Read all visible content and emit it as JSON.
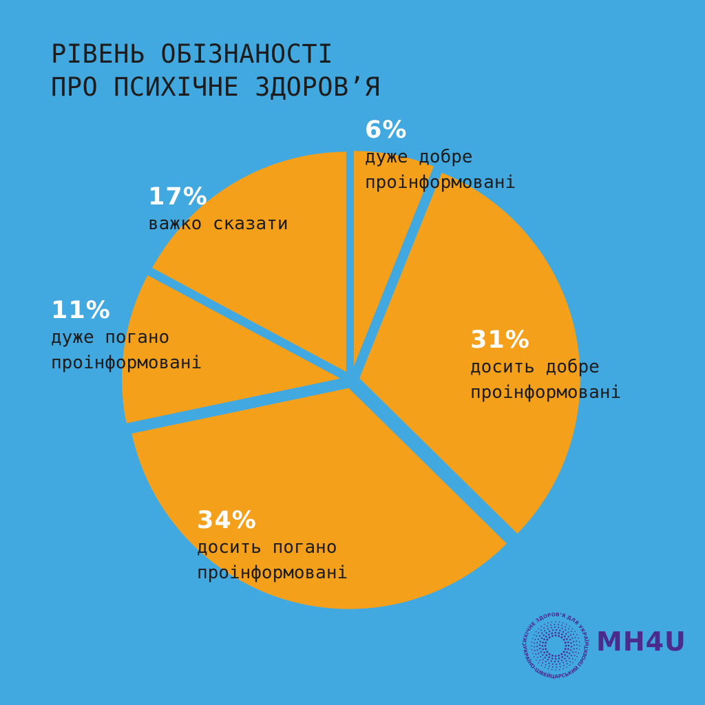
{
  "title": {
    "line1": "РІВЕНЬ ОБІЗНАНОСТІ",
    "line2": "ПРО ПСИХІЧНЕ ЗДОРОВ’Я"
  },
  "colors": {
    "background": "#41a9e0",
    "slice": "#f5a01b",
    "percent_text": "#ffffff",
    "label_text": "#1c1c1c",
    "logo": "#4b2c8c"
  },
  "chart_data": {
    "type": "pie",
    "title": "РІВЕНЬ ОБІЗНАНОСТІ ПРО ПСИХІЧНЕ ЗДОРОВ’Я",
    "slices": [
      {
        "value": 6,
        "percent_label": "6%",
        "label_lines": [
          "дуже добре",
          "проінформовані"
        ]
      },
      {
        "value": 31,
        "percent_label": "31%",
        "label_lines": [
          "досить добре",
          "проінформовані"
        ]
      },
      {
        "value": 34,
        "percent_label": "34%",
        "label_lines": [
          "досить погано",
          "проінформовані"
        ]
      },
      {
        "value": 11,
        "percent_label": "11%",
        "label_lines": [
          "дуже погано",
          "проінформовані"
        ]
      },
      {
        "value": 17,
        "percent_label": "17%",
        "label_lines": [
          "важко сказати"
        ]
      }
    ]
  },
  "logo": {
    "name": "MH4U",
    "ring_text_top": "ПСИХІЧНЕ ЗДОРОВ’Я ДЛЯ УКРАЇНИ",
    "ring_text_bottom": "УКРАЇНО-ШВЕЙЦАРСЬКИЙ ПРОЕКТ"
  }
}
